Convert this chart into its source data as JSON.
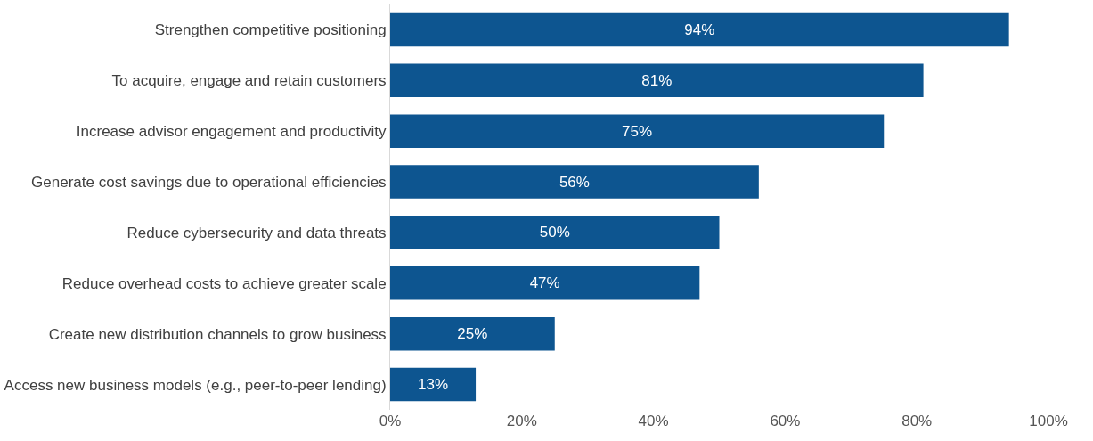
{
  "chart_data": {
    "type": "bar",
    "orientation": "horizontal",
    "categories": [
      "Strengthen competitive positioning",
      "To acquire, engage and retain customers",
      "Increase advisor engagement and productivity",
      "Generate cost savings due to operational efficiencies",
      "Reduce cybersecurity and data threats",
      "Reduce overhead costs to achieve greater scale",
      "Create new distribution channels to grow business",
      "Access new business models (e.g., peer-to-peer lending)"
    ],
    "values": [
      94,
      81,
      75,
      56,
      50,
      47,
      25,
      13
    ],
    "value_labels": [
      "94%",
      "81%",
      "75%",
      "56%",
      "50%",
      "47%",
      "25%",
      "13%"
    ],
    "color": "#0d5590",
    "xlim": [
      0,
      100
    ],
    "xticks": [
      {
        "value": 0,
        "label": "0%"
      },
      {
        "value": 20,
        "label": "20%"
      },
      {
        "value": 40,
        "label": "40%"
      },
      {
        "value": 60,
        "label": "60%"
      },
      {
        "value": 80,
        "label": "80%"
      },
      {
        "value": 100,
        "label": "100%"
      }
    ]
  }
}
